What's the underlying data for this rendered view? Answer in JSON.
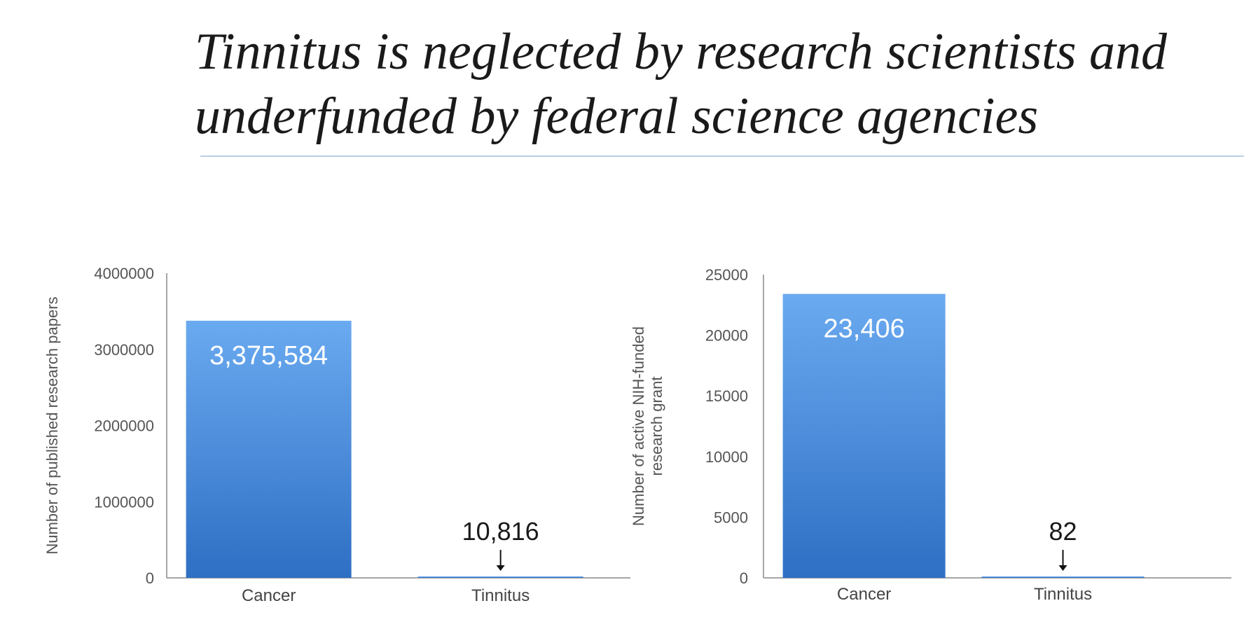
{
  "slide": {
    "title_line1": "Tinnitus is neglected by research scientists and",
    "title_line2": "underfunded by federal science agencies"
  },
  "colors": {
    "bar_top": "#6aaaf0",
    "bar_bottom": "#2f6fc4",
    "axis": "#888888",
    "rule": "#b8cfe6"
  },
  "chart_data": [
    {
      "type": "bar",
      "categories": [
        "Cancer",
        "Tinnitus"
      ],
      "values": [
        3375584,
        10816
      ],
      "value_labels": [
        "3,375,584",
        "10,816"
      ],
      "ylabel": "Number of published research papers",
      "ylim": [
        0,
        4000000
      ],
      "yticks": [
        0,
        1000000,
        2000000,
        3000000,
        4000000
      ],
      "ytick_labels": [
        "0",
        "1000000",
        "2000000",
        "3000000",
        "4000000"
      ],
      "grid": false
    },
    {
      "type": "bar",
      "categories": [
        "Cancer",
        "Tinnitus"
      ],
      "values": [
        23406,
        82
      ],
      "value_labels": [
        "23,406",
        "82"
      ],
      "ylabel_lines": [
        "Number of active NIH-funded",
        "research grant"
      ],
      "ylim": [
        0,
        25000
      ],
      "yticks": [
        0,
        5000,
        10000,
        15000,
        20000,
        25000
      ],
      "ytick_labels": [
        "0",
        "5000",
        "10000",
        "15000",
        "20000",
        "25000"
      ],
      "grid": false
    }
  ]
}
